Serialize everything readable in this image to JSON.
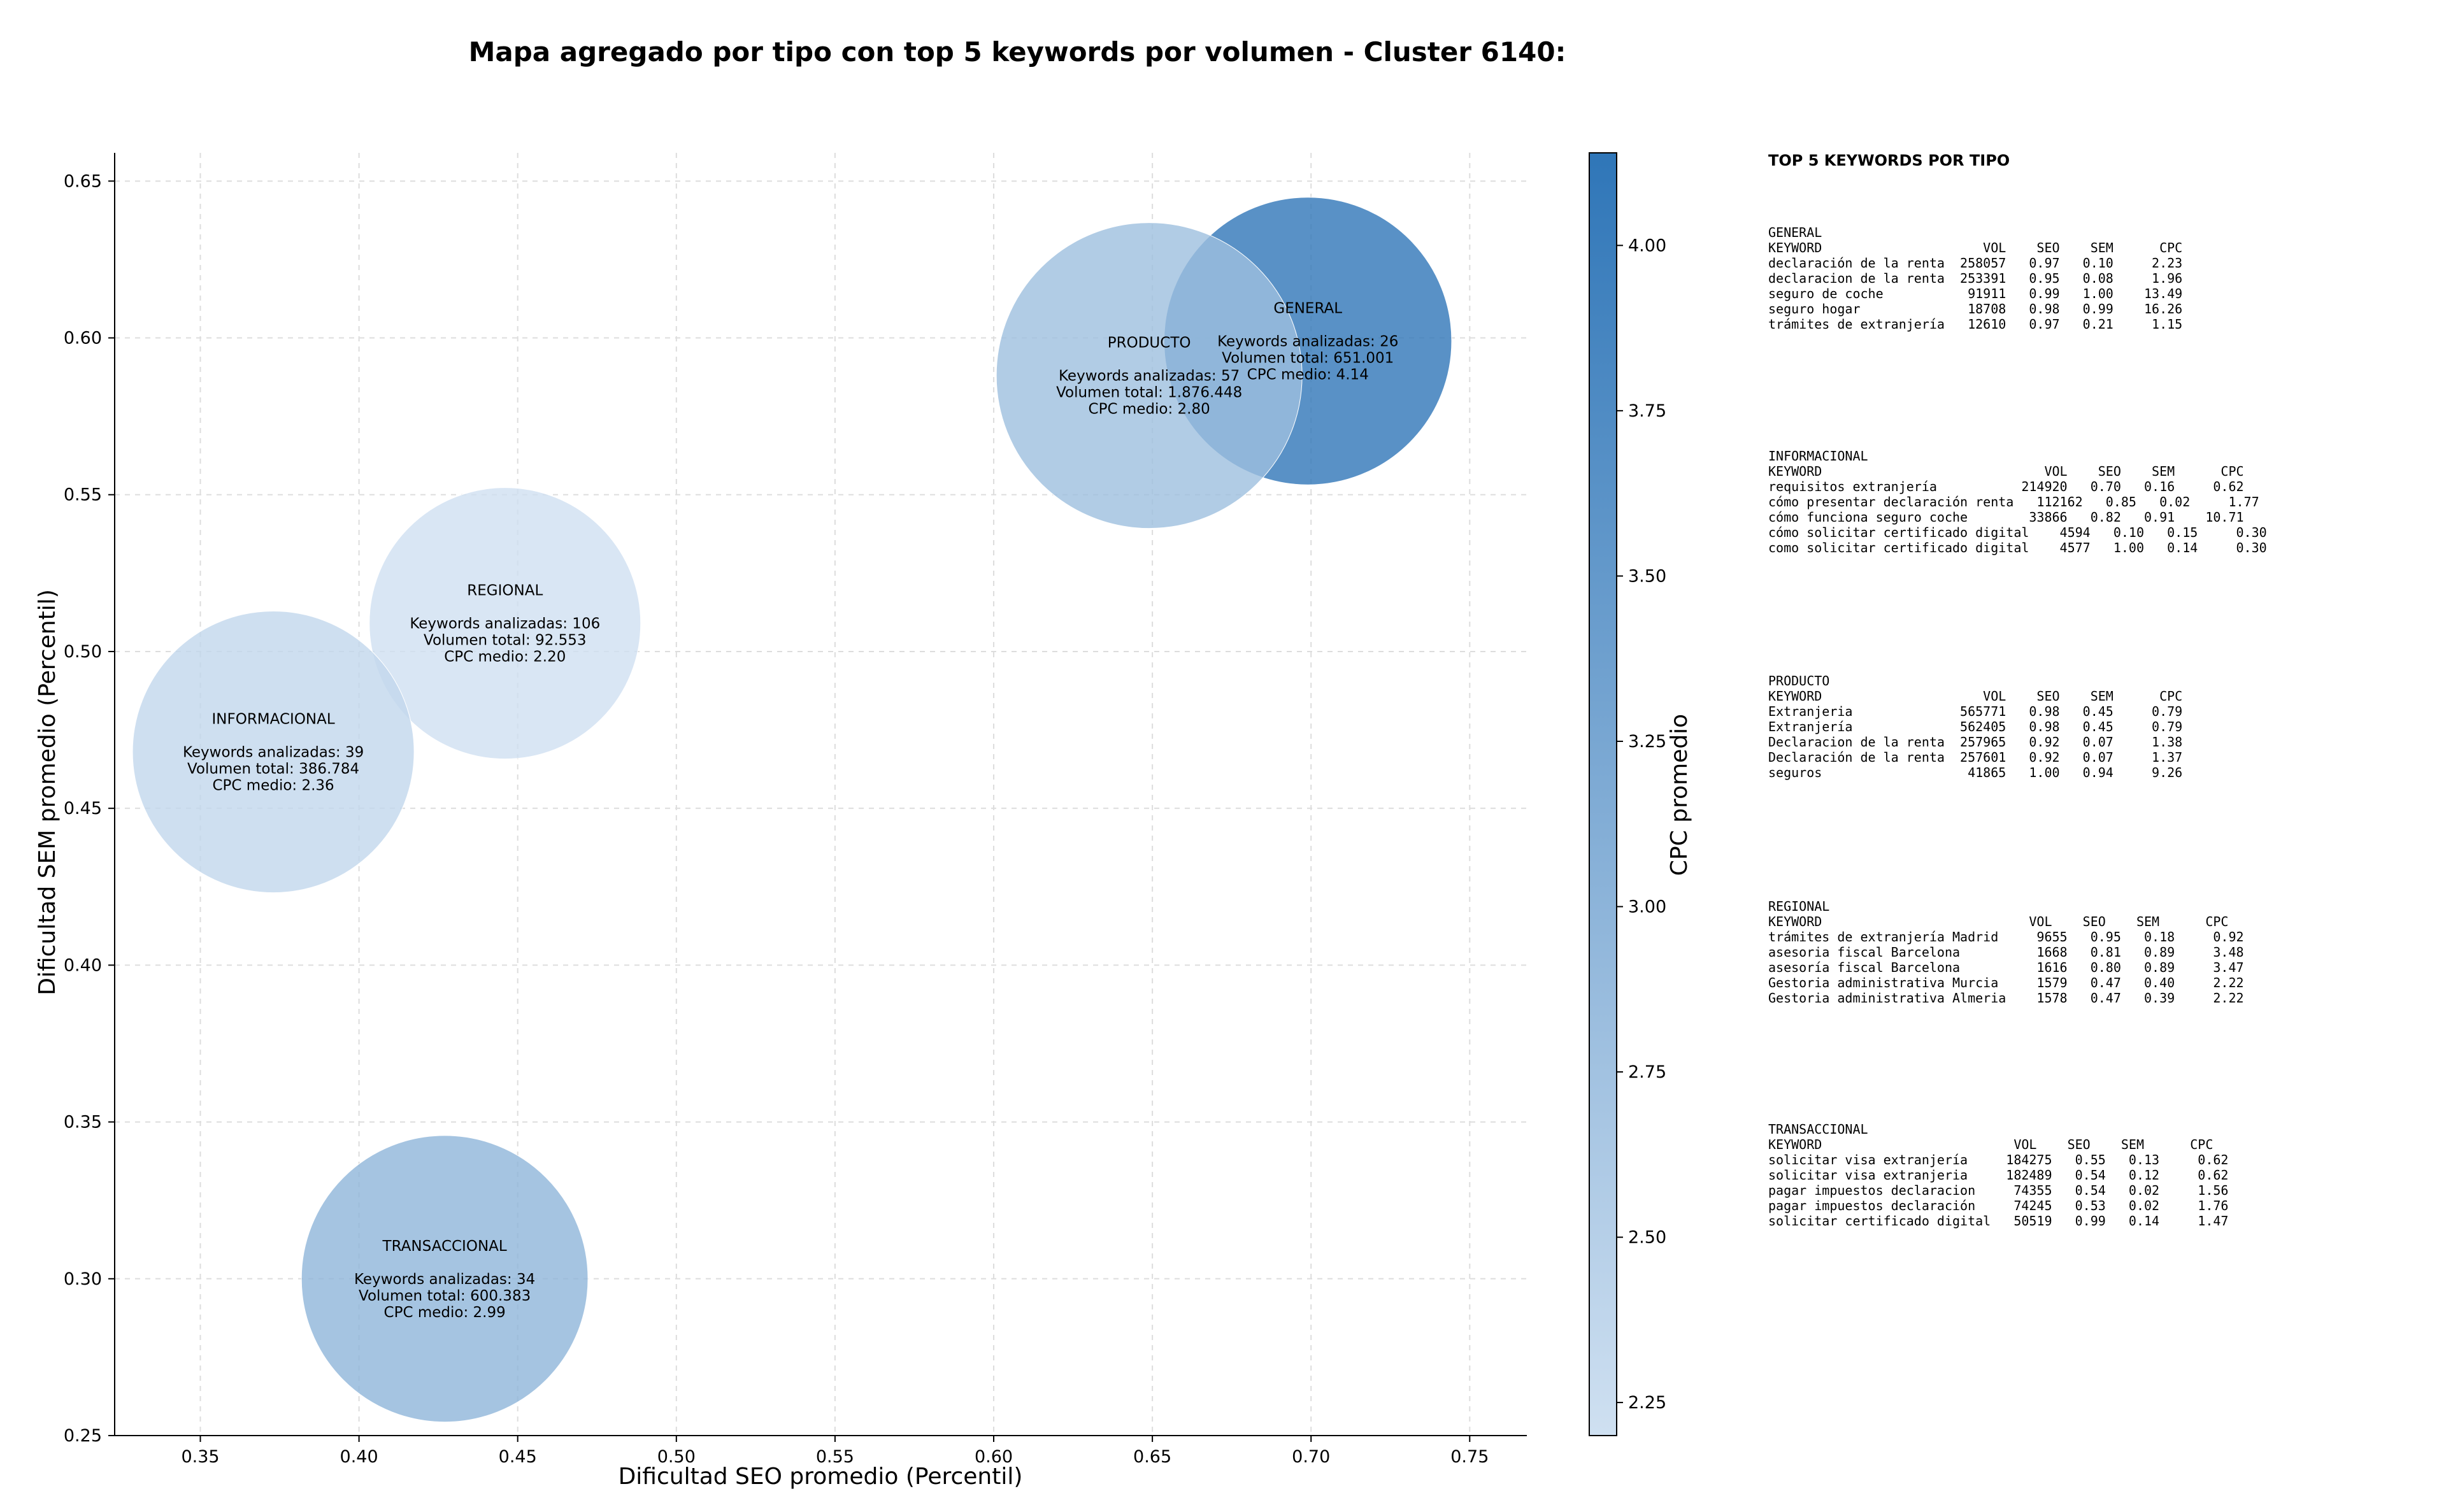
{
  "chart_data": {
    "type": "scatter",
    "title": "Mapa agregado por tipo con top 5 keywords por volumen - Cluster 6140:",
    "xlabel": "Dificultad SEO promedio (Percentil)",
    "ylabel": "Dificultad SEM promedio (Percentil)",
    "xlim": [
      0.323,
      0.768
    ],
    "ylim": [
      0.25,
      0.659
    ],
    "xticks": [
      0.35,
      0.4,
      0.45,
      0.5,
      0.55,
      0.6,
      0.65,
      0.7,
      0.75
    ],
    "xtick_labels": [
      "0.35",
      "0.40",
      "0.45",
      "0.50",
      "0.55",
      "0.60",
      "0.65",
      "0.70",
      "0.75"
    ],
    "yticks": [
      0.25,
      0.3,
      0.35,
      0.4,
      0.45,
      0.5,
      0.55,
      0.6,
      0.65
    ],
    "ytick_labels": [
      "0.25",
      "0.30",
      "0.35",
      "0.40",
      "0.45",
      "0.50",
      "0.55",
      "0.60",
      "0.65"
    ],
    "grid": true,
    "colorbar": {
      "label": "CPC promedio",
      "min": 2.2,
      "max": 4.14,
      "ticks": [
        2.25,
        2.5,
        2.75,
        3.0,
        3.25,
        3.5,
        3.75,
        4.0
      ],
      "tick_labels": [
        "2.25",
        "2.50",
        "2.75",
        "3.00",
        "3.25",
        "3.50",
        "3.75",
        "4.00"
      ],
      "color_low": "#cfe0f1",
      "color_high": "#2f76b8"
    },
    "bubbles": [
      {
        "name": "GENERAL",
        "x": 0.699,
        "y": 0.599,
        "keywords": 26,
        "volume": 651001,
        "cpc": 4.14,
        "lines": [
          "GENERAL",
          "",
          "Keywords analizadas: 26",
          "Volumen total: 651.001",
          "CPC medio: 4.14"
        ]
      },
      {
        "name": "PRODUCTO",
        "x": 0.649,
        "y": 0.588,
        "keywords": 57,
        "volume": 1876448,
        "cpc": 2.8,
        "lines": [
          "PRODUCTO",
          "",
          "Keywords analizadas: 57",
          "Volumen total: 1.876.448",
          "CPC medio: 2.80"
        ]
      },
      {
        "name": "REGIONAL",
        "x": 0.446,
        "y": 0.509,
        "keywords": 106,
        "volume": 92553,
        "cpc": 2.2,
        "lines": [
          "REGIONAL",
          "",
          "Keywords analizadas: 106",
          "Volumen total: 92.553",
          "CPC medio: 2.20"
        ]
      },
      {
        "name": "INFORMACIONAL",
        "x": 0.373,
        "y": 0.468,
        "keywords": 39,
        "volume": 386784,
        "cpc": 2.36,
        "lines": [
          "INFORMACIONAL",
          "",
          "Keywords analizadas: 39",
          "Volumen total: 386.784",
          "CPC medio: 2.36"
        ]
      },
      {
        "name": "TRANSACCIONAL",
        "x": 0.427,
        "y": 0.3,
        "keywords": 34,
        "volume": 600383,
        "cpc": 2.99,
        "lines": [
          "TRANSACCIONAL",
          "",
          "Keywords analizadas: 34",
          "Volumen total: 600.383",
          "CPC medio: 2.99"
        ]
      }
    ],
    "side_panel": {
      "title": "TOP 5 KEYWORDS POR TIPO",
      "sections": [
        {
          "lines": [
            "GENERAL",
            "KEYWORD                     VOL    SEO    SEM      CPC",
            "declaración de la renta  258057   0.97   0.10     2.23",
            "declaracion de la renta  253391   0.95   0.08     1.96",
            "seguro de coche           91911   0.99   1.00    13.49",
            "seguro hogar              18708   0.98   0.99    16.26",
            "trámites de extranjería   12610   0.97   0.21     1.15"
          ]
        },
        {
          "lines": [
            "INFORMACIONAL",
            "KEYWORD                             VOL    SEO    SEM      CPC",
            "requisitos extranjería           214920   0.70   0.16     0.62",
            "cómo presentar declaración renta   112162   0.85   0.02     1.77",
            "cómo funciona seguro coche        33866   0.82   0.91    10.71",
            "cómo solicitar certificado digital    4594   0.10   0.15     0.30",
            "como solicitar certificado digital    4577   1.00   0.14     0.30"
          ]
        },
        {
          "lines": [
            "PRODUCTO",
            "KEYWORD                     VOL    SEO    SEM      CPC",
            "Extranjeria              565771   0.98   0.45     0.79",
            "Extranjería              562405   0.98   0.45     0.79",
            "Declaracion de la renta  257965   0.92   0.07     1.38",
            "Declaración de la renta  257601   0.92   0.07     1.37",
            "seguros                   41865   1.00   0.94     9.26"
          ]
        },
        {
          "lines": [
            "REGIONAL",
            "KEYWORD                           VOL    SEO    SEM      CPC",
            "trámites de extranjería Madrid     9655   0.95   0.18     0.92",
            "asesoria fiscal Barcelona          1668   0.81   0.89     3.48",
            "asesoría fiscal Barcelona          1616   0.80   0.89     3.47",
            "Gestoria administrativa Murcia     1579   0.47   0.40     2.22",
            "Gestoria administrativa Almeria    1578   0.47   0.39     2.22"
          ]
        },
        {
          "lines": [
            "TRANSACCIONAL",
            "KEYWORD                         VOL    SEO    SEM      CPC",
            "solicitar visa extranjería     184275   0.55   0.13     0.62",
            "solicitar visa extranjeria     182489   0.54   0.12     0.62",
            "pagar impuestos declaracion     74355   0.54   0.02     1.56",
            "pagar impuestos declaración     74245   0.53   0.02     1.76",
            "solicitar certificado digital   50519   0.99   0.14     1.47"
          ]
        }
      ]
    }
  }
}
